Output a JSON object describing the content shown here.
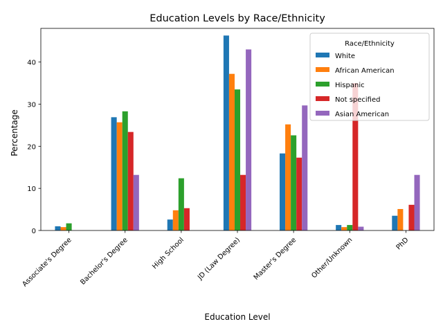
{
  "chart_data": {
    "type": "bar",
    "title": "Education Levels by Race/Ethnicity",
    "xlabel": "Education Level",
    "ylabel": "Percentage",
    "ylim": [
      0,
      48
    ],
    "yticks": [
      0,
      10,
      20,
      30,
      40
    ],
    "grid": false,
    "legend": {
      "title": "Race/Ethnicity",
      "placement": "top-right"
    },
    "categories": [
      "Associate's Degree",
      "Bachelor's Degree",
      "High School",
      "JD (Law Degree)",
      "Master's Degree",
      "Other/Unknown",
      "PhD"
    ],
    "series": [
      {
        "name": "White",
        "color": "#1f77b4",
        "values": [
          1.0,
          26.9,
          2.6,
          46.3,
          18.3,
          1.3,
          3.5
        ]
      },
      {
        "name": "African American",
        "color": "#ff7f0e",
        "values": [
          0.8,
          25.7,
          4.8,
          37.2,
          25.2,
          0.8,
          5.1
        ]
      },
      {
        "name": "Hispanic",
        "color": "#2ca02c",
        "values": [
          1.7,
          28.3,
          12.4,
          33.5,
          22.6,
          1.3,
          0.0
        ]
      },
      {
        "name": "Not specified",
        "color": "#d62728",
        "values": [
          0.0,
          23.4,
          5.3,
          13.2,
          17.3,
          35.0,
          6.1
        ]
      },
      {
        "name": "Asian American",
        "color": "#9467bd",
        "values": [
          0.0,
          13.2,
          0.0,
          43.0,
          29.7,
          0.9,
          13.2
        ]
      }
    ]
  }
}
